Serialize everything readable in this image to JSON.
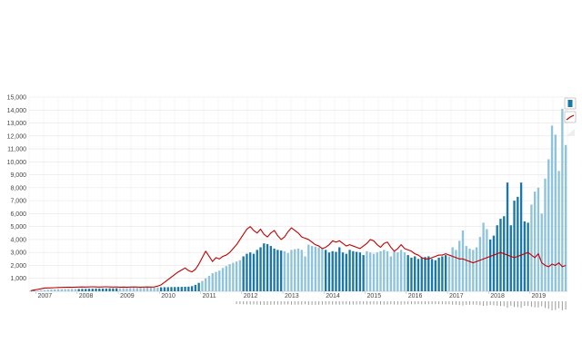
{
  "chart_data": {
    "type": "bar",
    "title": "",
    "xlabel": "",
    "ylabel": "",
    "ylim": [
      0,
      15000
    ],
    "y_ticks": [
      "1,000",
      "2,000",
      "3,000",
      "4,000",
      "5,000",
      "6,000",
      "7,000",
      "8,000",
      "9,000",
      "10,000",
      "11,000",
      "12,000",
      "13,000",
      "14,000",
      "15,000"
    ],
    "y_tick_values": [
      1000,
      2000,
      3000,
      4000,
      5000,
      6000,
      7000,
      8000,
      9000,
      10000,
      11000,
      12000,
      13000,
      14000,
      15000
    ],
    "x_ticks": [
      "2007",
      "2008",
      "2009",
      "2010",
      "2011",
      "2012",
      "2013",
      "2014",
      "2015",
      "2016",
      "2017",
      "2018",
      "2019"
    ],
    "grid": true,
    "legend_position": "right",
    "x_start": "2006-11",
    "x_end": "2019-04",
    "year_colors": [
      "#8ec3dc",
      "#1a77a6"
    ],
    "line_color": "#c00000",
    "series": [
      {
        "kind": "bar",
        "values": [
          20,
          40,
          60,
          80,
          100,
          120,
          140,
          150,
          160,
          160,
          170,
          170,
          180,
          180,
          180,
          190,
          190,
          200,
          200,
          210,
          210,
          210,
          220,
          230,
          230,
          240,
          240,
          250,
          250,
          260,
          260,
          260,
          270,
          270,
          280,
          280,
          300,
          300,
          310,
          320,
          320,
          330,
          330,
          340,
          340,
          350,
          360,
          400,
          500,
          650,
          800,
          1000,
          1200,
          1400,
          1500,
          1600,
          1800,
          1950,
          2100,
          2200,
          2300,
          2400,
          2700,
          2900,
          3000,
          2900,
          3200,
          3400,
          3700,
          3650,
          3500,
          3300,
          3200,
          3150,
          3100,
          2950,
          3200,
          3250,
          3300,
          3200,
          2700,
          3600,
          3500,
          3450,
          3400,
          3300,
          3200,
          3000,
          3100,
          3050,
          3400,
          3000,
          2900,
          3200,
          3100,
          3050,
          3000,
          2800,
          3100,
          3000,
          2900,
          3000,
          3100,
          3200,
          3100,
          2700,
          3100,
          3000,
          3200,
          3000,
          2800,
          2600,
          2700,
          2500,
          2600,
          2650,
          2700,
          2500,
          2400,
          2600,
          2700,
          2800,
          2700,
          3400,
          3200,
          3900,
          4700,
          3500,
          3300,
          3200,
          3400,
          4200,
          5300,
          4800,
          4000,
          4300,
          5100,
          5600,
          5800,
          8400,
          5100,
          7000,
          7300,
          8400,
          5400,
          5300,
          6700,
          7700,
          8000,
          6000,
          8700,
          10200,
          12800,
          12100,
          9300,
          14100,
          11300
        ]
      },
      {
        "kind": "line",
        "values": [
          50,
          100,
          150,
          200,
          250,
          260,
          270,
          280,
          290,
          300,
          310,
          320,
          310,
          320,
          330,
          340,
          330,
          340,
          350,
          340,
          330,
          340,
          350,
          340,
          330,
          340,
          320,
          330,
          320,
          330,
          340,
          330,
          320,
          330,
          340,
          330,
          340,
          400,
          500,
          700,
          900,
          1100,
          1300,
          1500,
          1650,
          1800,
          1600,
          1500,
          1700,
          2100,
          2600,
          3100,
          2700,
          2300,
          2600,
          2500,
          2700,
          2800,
          3000,
          3300,
          3600,
          4000,
          4400,
          4800,
          5000,
          4700,
          4500,
          4800,
          4400,
          4200,
          4500,
          4700,
          4300,
          4000,
          4200,
          4600,
          4900,
          4700,
          4500,
          4200,
          4100,
          4000,
          3800,
          3600,
          3500,
          3300,
          3400,
          3600,
          3900,
          3800,
          3900,
          3700,
          3500,
          3600,
          3500,
          3400,
          3300,
          3500,
          3700,
          4000,
          3900,
          3600,
          3400,
          3700,
          3800,
          3400,
          3100,
          3300,
          3600,
          3300,
          3200,
          3100,
          2900,
          2800,
          2600,
          2500,
          2500,
          2600,
          2700,
          2800,
          2800,
          2900,
          2800,
          2700,
          2600,
          2500,
          2500,
          2400,
          2300,
          2200,
          2300,
          2400,
          2500,
          2600,
          2700,
          2800,
          2900,
          3000,
          2900,
          2800,
          2700,
          2600,
          2700,
          2800,
          2900,
          3000,
          2800,
          2600,
          2900,
          2200,
          2000,
          1900,
          2100,
          2000,
          2200,
          1900,
          2000
        ]
      }
    ]
  }
}
